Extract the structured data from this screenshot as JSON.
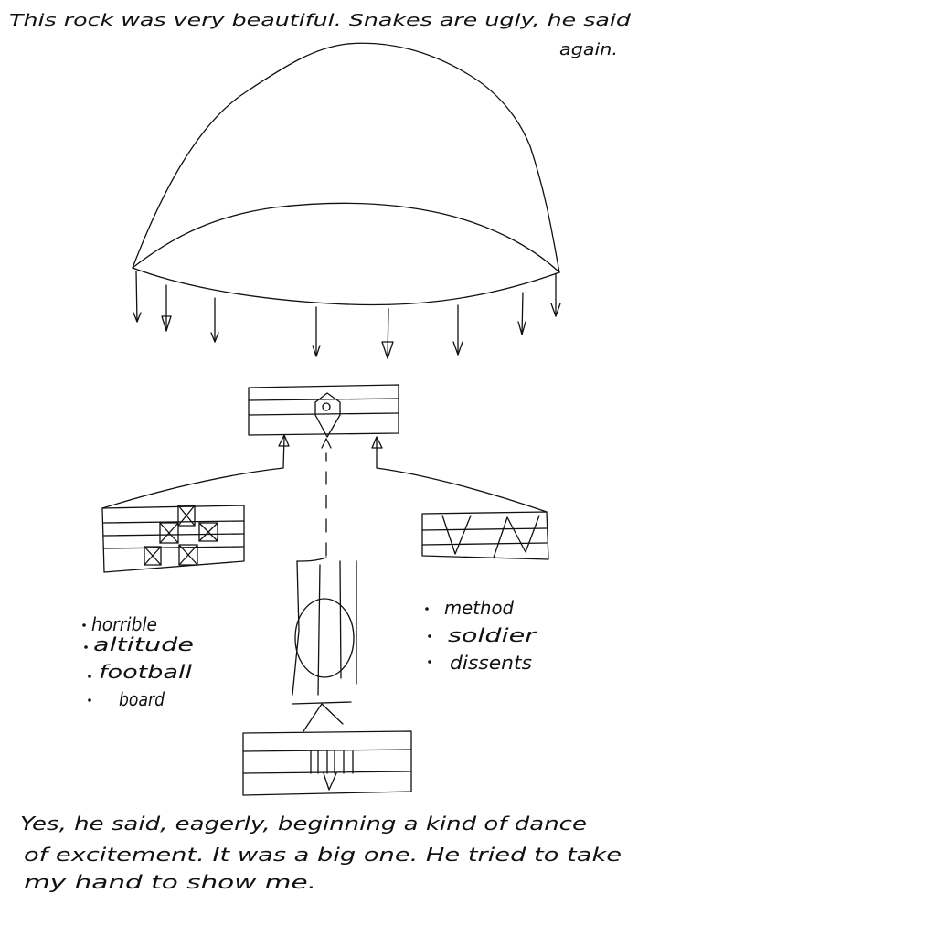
{
  "sketch": {
    "top_note": {
      "line1": "This rock was very beautiful. Snakes are ugly, he said",
      "line2": "again."
    },
    "left_list": [
      "horrible",
      "altitude",
      "football",
      "board"
    ],
    "right_list": [
      "method",
      "soldier",
      "dissents"
    ],
    "bottom_note": {
      "line1": "Yes, he said, eagerly, beginning a kind of dance",
      "line2": "of excitement. It was a big one. He tried to take",
      "line3": "my hand to show me."
    },
    "ink_color": "#111111",
    "background": "#ffffff"
  }
}
